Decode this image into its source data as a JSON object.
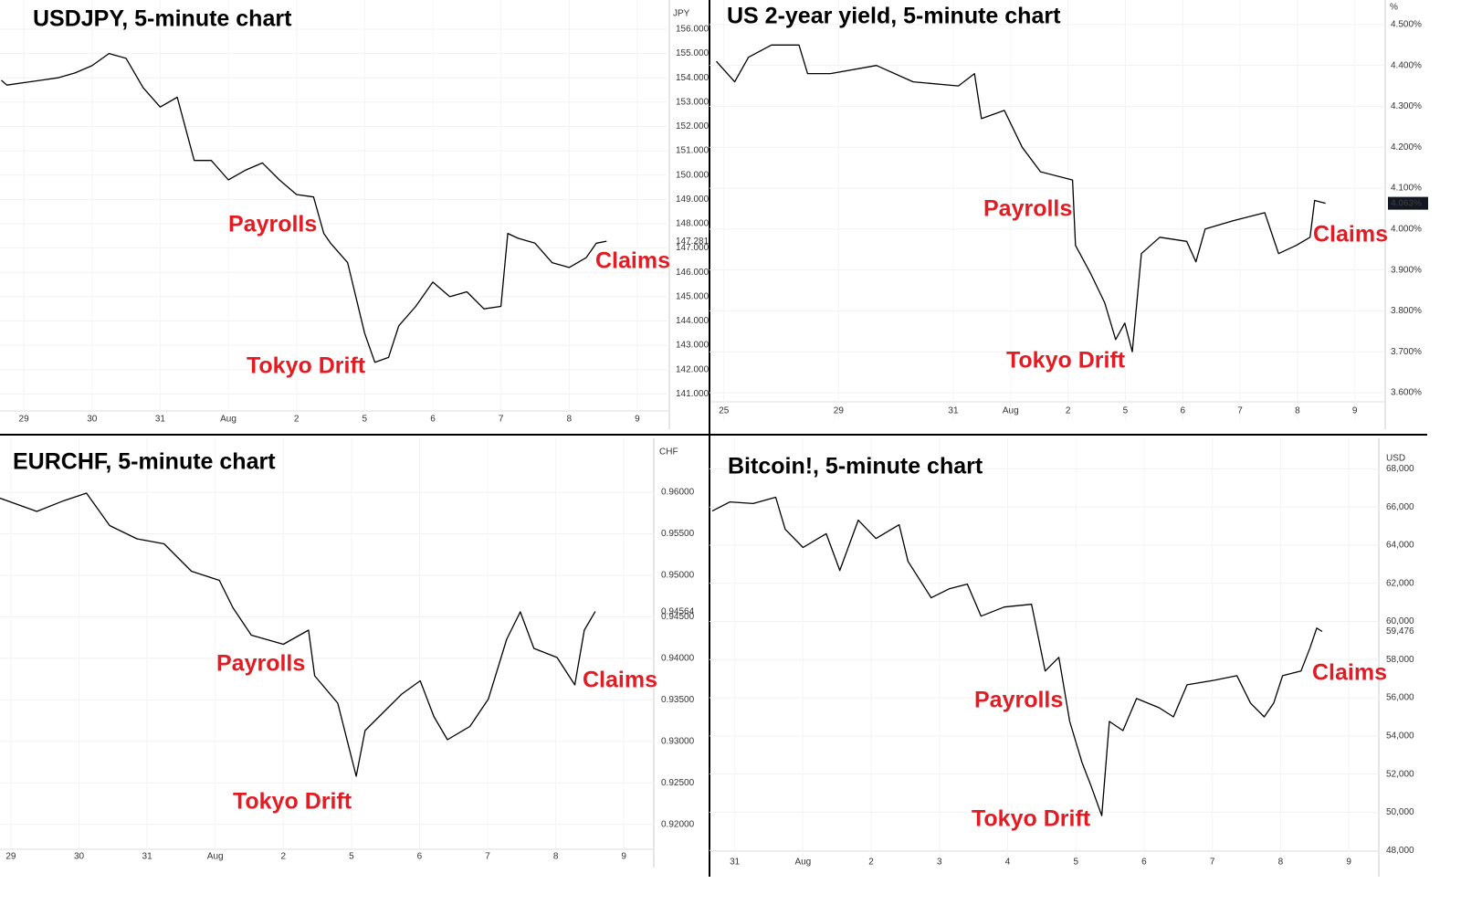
{
  "chart_data": [
    {
      "type": "line",
      "title": "USDJPY, 5-minute chart",
      "unit": "JPY",
      "color": "#000000",
      "grid": true,
      "xlim": [
        -0.35,
        9.43
      ],
      "ylim": [
        140.3,
        157.2
      ],
      "xticks": [
        {
          "value": 0,
          "label": "29"
        },
        {
          "value": 1,
          "label": "30"
        },
        {
          "value": 2,
          "label": "31"
        },
        {
          "value": 3,
          "label": "Aug"
        },
        {
          "value": 4,
          "label": "2"
        },
        {
          "value": 5,
          "label": "5"
        },
        {
          "value": 6,
          "label": "6"
        },
        {
          "value": 7,
          "label": "7"
        },
        {
          "value": 8,
          "label": "8"
        },
        {
          "value": 9,
          "label": "9"
        }
      ],
      "yticks": [
        {
          "value": 141,
          "label": "141.000"
        },
        {
          "value": 142,
          "label": "142.000"
        },
        {
          "value": 143,
          "label": "143.000"
        },
        {
          "value": 144,
          "label": "144.000"
        },
        {
          "value": 145,
          "label": "145.000"
        },
        {
          "value": 146,
          "label": "146.000"
        },
        {
          "value": 147,
          "label": "147.000"
        },
        {
          "value": 148,
          "label": "148.000"
        },
        {
          "value": 149,
          "label": "149.000"
        },
        {
          "value": 150,
          "label": "150.000"
        },
        {
          "value": 151,
          "label": "151.000"
        },
        {
          "value": 152,
          "label": "152.000"
        },
        {
          "value": 153,
          "label": "153.000"
        },
        {
          "value": 154,
          "label": "154.000"
        },
        {
          "value": 155,
          "label": "155.000"
        },
        {
          "value": 156,
          "label": "156.000"
        }
      ],
      "x": [
        -0.33,
        -0.25,
        0,
        0.25,
        0.5,
        0.75,
        1.0,
        1.25,
        1.5,
        1.75,
        2.0,
        2.25,
        2.5,
        2.75,
        3.0,
        3.25,
        3.5,
        3.75,
        4.0,
        4.25,
        4.4,
        4.5,
        4.75,
        5.0,
        5.15,
        5.35,
        5.5,
        5.75,
        6.0,
        6.25,
        6.5,
        6.75,
        7.0,
        7.1,
        7.25,
        7.5,
        7.75,
        8.0,
        8.25,
        8.4,
        8.55
      ],
      "values": [
        153.9,
        153.7,
        153.8,
        153.9,
        154.0,
        154.2,
        154.5,
        155.0,
        154.8,
        153.6,
        152.8,
        153.2,
        150.6,
        150.6,
        149.8,
        150.2,
        150.5,
        149.8,
        149.2,
        149.1,
        147.6,
        147.2,
        146.4,
        143.5,
        142.3,
        142.5,
        143.8,
        144.6,
        145.6,
        145.0,
        145.2,
        144.5,
        144.6,
        147.6,
        147.4,
        147.2,
        146.4,
        146.2,
        146.6,
        147.2,
        147.281
      ],
      "last_value": {
        "value": 147.281,
        "label": "147.281"
      },
      "annotations": [
        "Payrolls",
        "Tokyo Drift",
        "Claims"
      ],
      "annotation_color": "#e31b23"
    },
    {
      "type": "line",
      "title": "US 2-year yield, 5-minute chart",
      "unit": "%",
      "color": "#000000",
      "grid": true,
      "xlim": [
        -0.25,
        11.53
      ],
      "ylim": [
        3.533,
        4.56
      ],
      "xticks": [
        {
          "value": 0,
          "label": "25"
        },
        {
          "value": 2,
          "label": "29"
        },
        {
          "value": 4,
          "label": "31"
        },
        {
          "value": 5,
          "label": "Aug"
        },
        {
          "value": 6,
          "label": "2"
        },
        {
          "value": 7,
          "label": "5"
        },
        {
          "value": 8,
          "label": "6"
        },
        {
          "value": 9,
          "label": "7"
        },
        {
          "value": 10,
          "label": "8"
        },
        {
          "value": 11,
          "label": "9"
        }
      ],
      "yticks": [
        {
          "value": 3.6,
          "label": "3.600%"
        },
        {
          "value": 3.7,
          "label": "3.700%"
        },
        {
          "value": 3.8,
          "label": "3.800%"
        },
        {
          "value": 3.9,
          "label": "3.900%"
        },
        {
          "value": 4.0,
          "label": "4.000%"
        },
        {
          "value": 4.1,
          "label": "4.100%"
        },
        {
          "value": 4.2,
          "label": "4.200%"
        },
        {
          "value": 4.3,
          "label": "4.300%"
        },
        {
          "value": 4.4,
          "label": "4.400%"
        },
        {
          "value": 4.5,
          "label": "4.500%"
        }
      ],
      "x": [
        -0.13,
        0.19,
        0.43,
        0.83,
        1.31,
        1.46,
        1.86,
        2.66,
        3.3,
        4.09,
        4.37,
        4.49,
        4.89,
        5.2,
        5.52,
        6.08,
        6.13,
        6.4,
        6.64,
        6.83,
        6.99,
        7.12,
        7.28,
        7.6,
        8.07,
        8.23,
        8.39,
        8.87,
        9.43,
        9.67,
        9.98,
        10.22,
        10.3,
        10.49
      ],
      "values": [
        4.41,
        4.36,
        4.42,
        4.45,
        4.45,
        4.38,
        4.38,
        4.4,
        4.36,
        4.35,
        4.38,
        4.27,
        4.29,
        4.2,
        4.14,
        4.12,
        3.96,
        3.89,
        3.82,
        3.73,
        3.77,
        3.7,
        3.94,
        3.98,
        3.97,
        3.92,
        4.0,
        4.02,
        4.04,
        3.94,
        3.96,
        3.98,
        4.07,
        4.063
      ],
      "last_value": {
        "value": 4.063,
        "label": "4.063%"
      },
      "annotations": [
        "Payrolls",
        "Tokyo Drift",
        "Claims"
      ],
      "annotation_color": "#e31b23"
    },
    {
      "type": "line",
      "title": "EURCHF, 5-minute chart",
      "unit": "CHF",
      "color": "#000000",
      "grid": true,
      "xlim": [
        -0.16,
        9.44
      ],
      "ylim": [
        0.917,
        0.9665
      ],
      "xticks": [
        {
          "value": 0,
          "label": "29"
        },
        {
          "value": 1,
          "label": "30"
        },
        {
          "value": 2,
          "label": "31"
        },
        {
          "value": 3,
          "label": "Aug"
        },
        {
          "value": 4,
          "label": "2"
        },
        {
          "value": 5,
          "label": "5"
        },
        {
          "value": 6,
          "label": "6"
        },
        {
          "value": 7,
          "label": "7"
        },
        {
          "value": 8,
          "label": "8"
        },
        {
          "value": 9,
          "label": "9"
        }
      ],
      "yticks": [
        {
          "value": 0.92,
          "label": "0.92000"
        },
        {
          "value": 0.925,
          "label": "0.92500"
        },
        {
          "value": 0.93,
          "label": "0.93000"
        },
        {
          "value": 0.935,
          "label": "0.93500"
        },
        {
          "value": 0.94,
          "label": "0.94000"
        },
        {
          "value": 0.945,
          "label": "0.94500"
        },
        {
          "value": 0.95,
          "label": "0.95000"
        },
        {
          "value": 0.955,
          "label": "0.95500"
        },
        {
          "value": 0.96,
          "label": "0.96000"
        }
      ],
      "x": [
        -0.16,
        0.38,
        0.78,
        1.11,
        1.45,
        1.85,
        2.25,
        2.65,
        3.06,
        3.26,
        3.53,
        4.0,
        4.37,
        4.46,
        4.8,
        5.07,
        5.2,
        5.47,
        5.74,
        6.01,
        6.21,
        6.41,
        6.74,
        7.01,
        7.28,
        7.48,
        7.68,
        8.02,
        8.28,
        8.42,
        8.58
      ],
      "values": [
        0.9593,
        0.9577,
        0.959,
        0.9599,
        0.956,
        0.9544,
        0.9538,
        0.9505,
        0.9494,
        0.9461,
        0.9428,
        0.9417,
        0.9434,
        0.9379,
        0.9346,
        0.9258,
        0.9313,
        0.9335,
        0.9357,
        0.9373,
        0.933,
        0.9302,
        0.9318,
        0.9351,
        0.9423,
        0.9456,
        0.9412,
        0.9401,
        0.9368,
        0.9434,
        0.94564
      ],
      "last_value": {
        "value": 0.94564,
        "label": "0.94564"
      },
      "annotations": [
        "Payrolls",
        "Tokyo Drift",
        "Claims"
      ],
      "annotation_color": "#e31b23"
    },
    {
      "type": "line",
      "title": "Bitcoin!, 5-minute chart",
      "unit": "USD",
      "color": "#000000",
      "grid": true,
      "xlim": [
        -0.37,
        9.44
      ],
      "ylim": [
        47100,
        69600
      ],
      "xticks": [
        {
          "value": 0,
          "label": "31"
        },
        {
          "value": 1,
          "label": "Aug"
        },
        {
          "value": 2,
          "label": "2"
        },
        {
          "value": 3,
          "label": "3"
        },
        {
          "value": 4,
          "label": "4"
        },
        {
          "value": 5,
          "label": "5"
        },
        {
          "value": 6,
          "label": "6"
        },
        {
          "value": 7,
          "label": "7"
        },
        {
          "value": 8,
          "label": "8"
        },
        {
          "value": 9,
          "label": "9"
        }
      ],
      "yticks": [
        {
          "value": 48000,
          "label": "48,000"
        },
        {
          "value": 50000,
          "label": "50,000"
        },
        {
          "value": 52000,
          "label": "52,000"
        },
        {
          "value": 54000,
          "label": "54,000"
        },
        {
          "value": 56000,
          "label": "56,000"
        },
        {
          "value": 58000,
          "label": "58,000"
        },
        {
          "value": 60000,
          "label": "60,000"
        },
        {
          "value": 62000,
          "label": "62,000"
        },
        {
          "value": 64000,
          "label": "64,000"
        },
        {
          "value": 66000,
          "label": "66,000"
        },
        {
          "value": 68000,
          "label": "68,000"
        }
      ],
      "x": [
        -0.33,
        -0.07,
        0.27,
        0.6,
        0.74,
        1.0,
        1.34,
        1.54,
        1.81,
        2.07,
        2.41,
        2.54,
        2.88,
        3.15,
        3.41,
        3.61,
        3.95,
        4.35,
        4.55,
        4.75,
        4.91,
        5.09,
        5.22,
        5.38,
        5.49,
        5.69,
        5.89,
        6.22,
        6.43,
        6.63,
        7.03,
        7.36,
        7.56,
        7.76,
        7.9,
        8.03,
        8.3,
        8.43,
        8.53,
        8.61
      ],
      "values": [
        65790,
        66270,
        66180,
        66510,
        64830,
        63880,
        64600,
        62680,
        65310,
        64350,
        65070,
        63150,
        61240,
        61720,
        61960,
        60280,
        60760,
        60900,
        57400,
        58120,
        54760,
        52600,
        51400,
        49820,
        54760,
        54280,
        55960,
        55480,
        55000,
        56680,
        56920,
        57160,
        55720,
        55000,
        55720,
        57160,
        57400,
        58600,
        59650,
        59476
      ],
      "last_value": {
        "value": 59476,
        "label": "59,476"
      },
      "annotations": [
        "Payrolls",
        "Tokyo Drift",
        "Claims"
      ],
      "annotation_color": "#e31b23"
    }
  ]
}
